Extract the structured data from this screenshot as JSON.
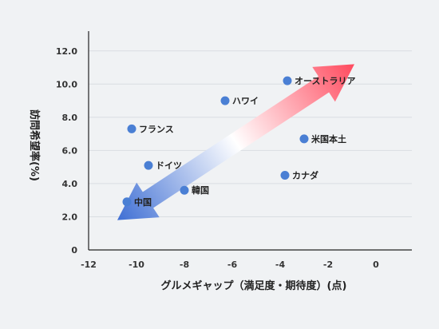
{
  "chart_data": {
    "type": "scatter",
    "xlabel": "グルメギャップ（満足度・期待度）(点)",
    "ylabel": "訪問希望率(%)",
    "xlim": [
      -12,
      1.5
    ],
    "ylim": [
      0,
      13
    ],
    "x_ticks": [
      -12,
      -10,
      -8,
      -6,
      -4,
      -2,
      0
    ],
    "y_ticks": [
      0,
      2.0,
      4.0,
      6.0,
      8.0,
      10.0,
      12.0
    ],
    "y_tick_labels": [
      "0",
      "2.0",
      "4.0",
      "6.0",
      "8.0",
      "10.0",
      "12.0"
    ],
    "grid": "horizontal",
    "point_color": "#4a7fd4",
    "points": [
      {
        "label": "オーストラリア",
        "x": -3.7,
        "y": 10.2
      },
      {
        "label": "ハワイ",
        "x": -6.3,
        "y": 9.0
      },
      {
        "label": "フランス",
        "x": -10.2,
        "y": 7.3
      },
      {
        "label": "米国本土",
        "x": -3.0,
        "y": 6.7
      },
      {
        "label": "ドイツ",
        "x": -9.5,
        "y": 5.1
      },
      {
        "label": "カナダ",
        "x": -3.8,
        "y": 4.5
      },
      {
        "label": "韓国",
        "x": -8.0,
        "y": 3.6
      },
      {
        "label": "中国",
        "x": -10.4,
        "y": 2.9
      }
    ],
    "trend_arrow": {
      "style": "double-headed gradient",
      "from": {
        "x": -10.8,
        "y": 1.8
      },
      "to": {
        "x": -0.9,
        "y": 11.2
      },
      "color_start": "#3f6fd4",
      "color_end": "#ff4a5e"
    }
  }
}
